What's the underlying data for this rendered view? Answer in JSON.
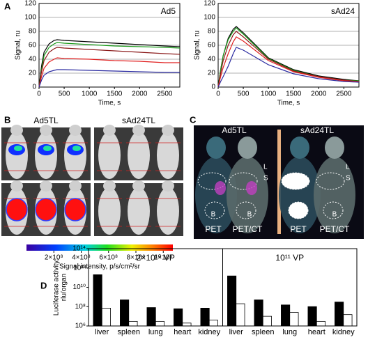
{
  "panels": [
    "A",
    "B",
    "C",
    "D"
  ],
  "chart_data": [
    {
      "type": "line",
      "annotation": "Ad5",
      "xlabel": "Time, s",
      "ylabel": "Signal, ru",
      "xlim": [
        0,
        2800
      ],
      "xticks": [
        0,
        500,
        1000,
        1500,
        2000,
        2500
      ],
      "ylim": [
        0,
        120
      ],
      "yticks": [
        0,
        20,
        40,
        60,
        80,
        100,
        120
      ],
      "grid": true,
      "x": [
        0,
        50,
        100,
        200,
        300,
        360,
        500,
        1000,
        1500,
        2000,
        2500,
        2800
      ],
      "series": [
        {
          "color": "#000000",
          "values": [
            0,
            30,
            50,
            62,
            67,
            68,
            67,
            65,
            63,
            61,
            59,
            58
          ]
        },
        {
          "color": "#1a9a1a",
          "values": [
            0,
            25,
            45,
            57,
            62,
            64,
            63,
            61,
            59,
            58,
            57,
            56
          ]
        },
        {
          "color": "#8b1a1a",
          "values": [
            0,
            22,
            38,
            50,
            55,
            57,
            56,
            54,
            52,
            50,
            48,
            47
          ]
        },
        {
          "color": "#e02020",
          "values": [
            0,
            15,
            27,
            36,
            40,
            42,
            41,
            40,
            38,
            37,
            35,
            35
          ]
        },
        {
          "color": "#2a2aa0",
          "values": [
            0,
            10,
            17,
            22,
            24,
            25,
            25,
            24,
            23,
            22,
            21,
            21
          ]
        }
      ]
    },
    {
      "type": "line",
      "annotation": "sAd24",
      "xlabel": "Time, s",
      "ylabel": "Signal, ru",
      "xlim": [
        0,
        2800
      ],
      "xticks": [
        0,
        500,
        1000,
        1500,
        2000,
        2500
      ],
      "ylim": [
        0,
        120
      ],
      "yticks": [
        0,
        20,
        40,
        60,
        80,
        100,
        120
      ],
      "grid": true,
      "x": [
        0,
        50,
        100,
        200,
        300,
        360,
        500,
        1000,
        1500,
        2000,
        2500,
        2800
      ],
      "series": [
        {
          "color": "#000000",
          "values": [
            0,
            25,
            45,
            70,
            83,
            87,
            78,
            42,
            25,
            16,
            11,
            9
          ]
        },
        {
          "color": "#1a9a1a",
          "values": [
            0,
            25,
            45,
            68,
            80,
            85,
            76,
            41,
            24,
            15,
            10,
            9
          ]
        },
        {
          "color": "#8b1a1a",
          "values": [
            0,
            20,
            38,
            60,
            75,
            80,
            72,
            40,
            23,
            15,
            10,
            8
          ]
        },
        {
          "color": "#e02020",
          "values": [
            0,
            15,
            28,
            48,
            65,
            72,
            66,
            38,
            22,
            14,
            9,
            8
          ]
        },
        {
          "color": "#2a2aa0",
          "values": [
            0,
            8,
            15,
            30,
            48,
            57,
            53,
            32,
            19,
            12,
            8,
            7
          ]
        }
      ]
    },
    {
      "type": "bar",
      "ylabel": [
        "Luciferase activity,",
        "rlu/organ"
      ],
      "log": true,
      "ylim": [
        1000000,
        100000000000000
      ],
      "yticks": [
        {
          "value": 1000000,
          "label": "10⁶"
        },
        {
          "value": 100000000,
          "label": "10⁸"
        },
        {
          "value": 10000000000,
          "label": "10¹⁰"
        },
        {
          "value": 1000000000000,
          "label": "10¹²"
        },
        {
          "value": 100000000000000,
          "label": "10¹⁴"
        }
      ],
      "groups": [
        "2×10¹⁰ VP",
        "10¹¹ VP"
      ],
      "categories": [
        "liver",
        "spleen",
        "lung",
        "heart",
        "kidney",
        "liver",
        "spleen",
        "lung",
        "heart",
        "kidney"
      ],
      "series": [
        {
          "color": "#000000",
          "values": [
            200000000000,
            500000000,
            80000000,
            60000000,
            70000000,
            150000000000,
            500000000,
            150000000,
            100000000,
            300000000
          ]
        },
        {
          "color": "#ffffff",
          "values": [
            70000000,
            3000000,
            3000000,
            2000000,
            4000000,
            200000000,
            10000000,
            25000000,
            3000000,
            15000000
          ]
        }
      ]
    }
  ],
  "images": {
    "B": {
      "labels": [
        "Ad5TL",
        "sAd24TL"
      ],
      "colorbar": {
        "label": "Signal intensity, p/s/cm²/sr",
        "xlim": [
          0,
          1070000000
        ],
        "ticks": [
          {
            "value": 200000000,
            "label": "2×10⁸"
          },
          {
            "value": 400000000,
            "label": "4×10⁸"
          },
          {
            "value": 600000000,
            "label": "6×10⁸"
          },
          {
            "value": 800000000,
            "label": "8×10⁸"
          },
          {
            "value": 1000000000,
            "label": "1×10⁹"
          }
        ]
      }
    },
    "C": {
      "labels": [
        "Ad5TL",
        "sAd24TL"
      ],
      "captions": [
        "PET",
        "PET/CT",
        "PET",
        "PET/CT"
      ],
      "organs": [
        "L",
        "S",
        "B"
      ]
    }
  }
}
